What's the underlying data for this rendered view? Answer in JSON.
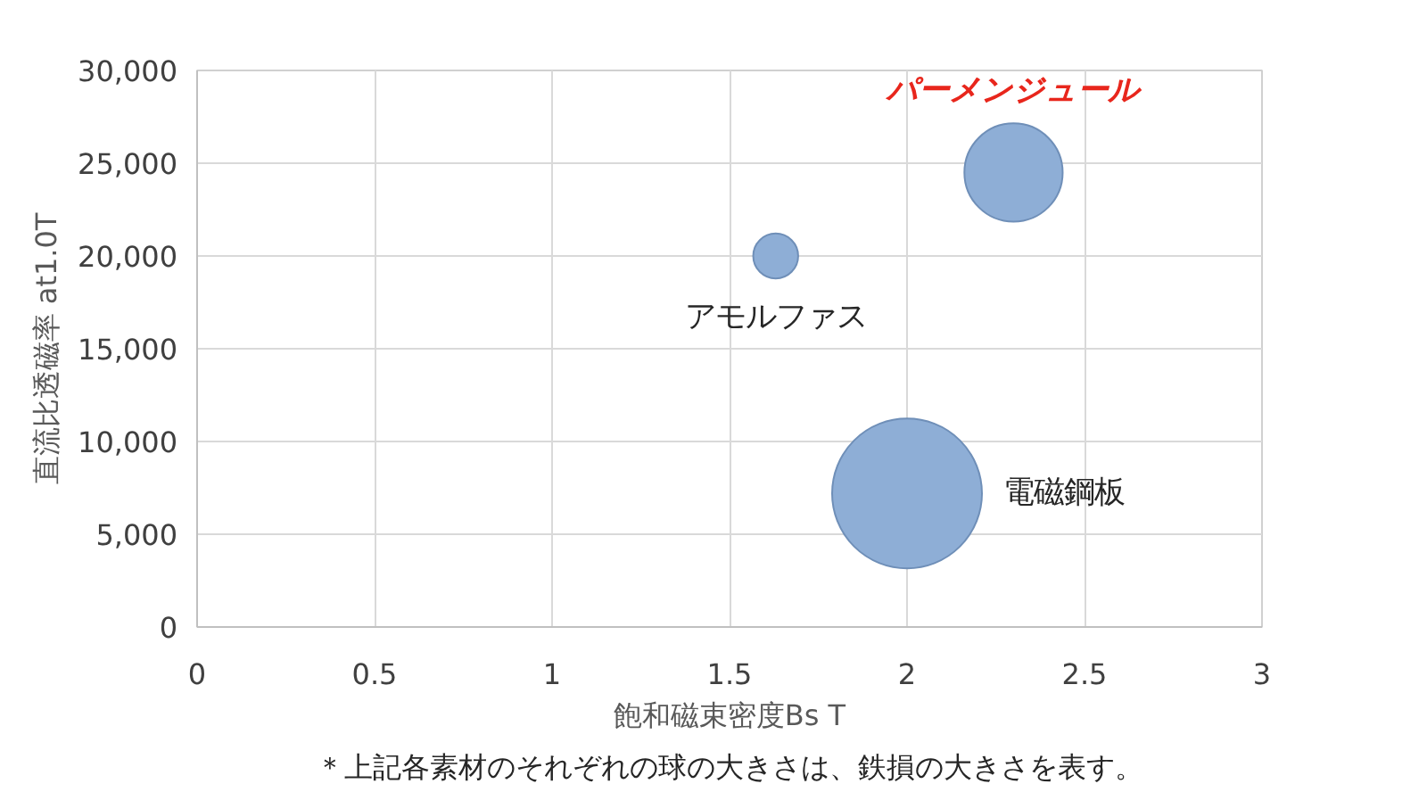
{
  "chart_data": {
    "type": "bubble",
    "xlabel": "飽和磁束密度Bs T",
    "ylabel": "直流比透磁率 at1.0T",
    "series": [
      {
        "name": "パーメンジュール",
        "color": "#8eaed6",
        "x": [
          2.3
        ],
        "values": [
          24500
        ],
        "sizes": [
          0.43
        ]
      },
      {
        "name": "アモルファス",
        "color": "#8eaed6",
        "x": [
          1.63
        ],
        "values": [
          20000
        ],
        "sizes": [
          0.09
        ]
      },
      {
        "name": "電磁鋼板",
        "color": "#8eaed6",
        "x": [
          2.0
        ],
        "values": [
          7200
        ],
        "sizes": [
          1
        ]
      }
    ],
    "xlim": [
      0,
      3
    ],
    "xticks": [
      0,
      {
        "value": 0.5,
        "label": "0.5"
      },
      1,
      {
        "value": 1.5,
        "label": "1.5"
      },
      2,
      {
        "value": 2.5,
        "label": "2.5"
      },
      3
    ],
    "ylim": [
      0,
      30000
    ],
    "yticks": [
      0,
      {
        "value": 5000,
        "label": "5,000"
      },
      {
        "value": 10000,
        "label": "10,000"
      },
      {
        "value": 15000,
        "label": "15,000"
      },
      {
        "value": 20000,
        "label": "20,000"
      },
      {
        "value": 25000,
        "label": "25,000"
      },
      {
        "value": 30000,
        "label": "30,000"
      }
    ],
    "grid": true,
    "annotations": [
      "＊上記各素材のそれぞれの球の大きさは、鉄損の大きさを表す。"
    ]
  }
}
